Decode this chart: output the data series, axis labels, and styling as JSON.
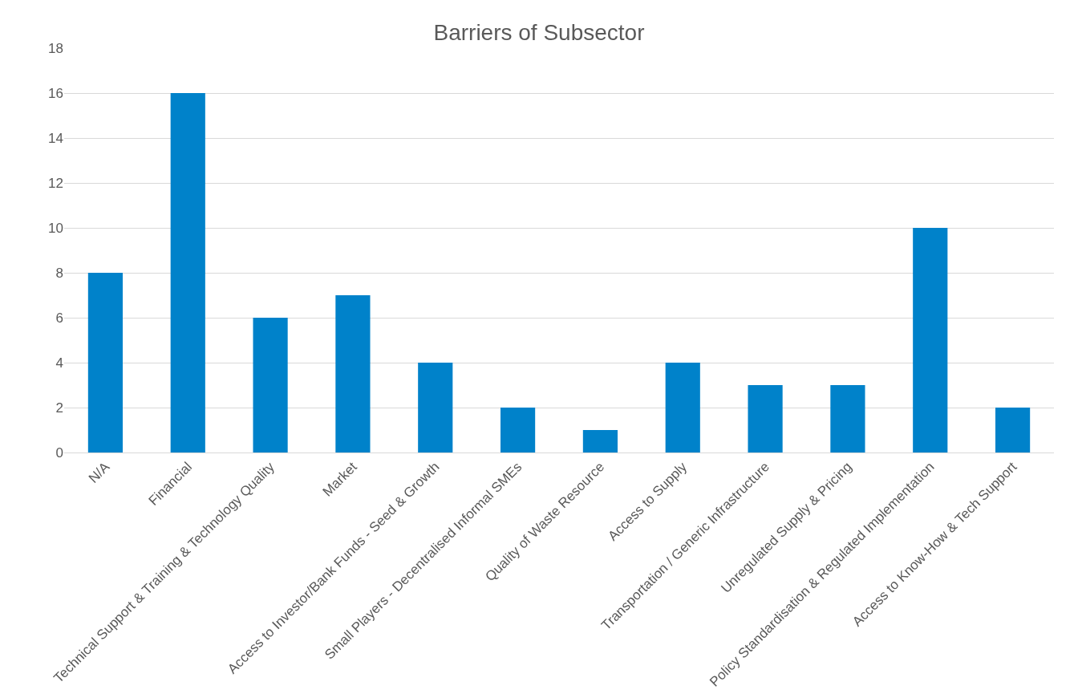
{
  "chart_data": {
    "type": "bar",
    "title": "Barriers of Subsector",
    "categories": [
      "N/A",
      "Financial",
      "Technical Support & Training & Technology Quality",
      "Market",
      "Access to Investor/Bank Funds - Seed & Growth",
      "Small Players - Decentralised Informal SMEs",
      "Quality of Waste Resource",
      "Access to Supply",
      "Transportation / Generic Infrastructure",
      "Unregulated Supply & Pricing",
      "Policy Standardisation & Regulated Implementation",
      "Access to Know-How & Tech Support"
    ],
    "values": [
      8,
      16,
      6,
      7,
      4,
      2,
      1,
      4,
      3,
      3,
      10,
      2
    ],
    "color": "#0082ca",
    "ylim": [
      0,
      18
    ],
    "yticks": [
      0,
      2,
      4,
      6,
      8,
      10,
      12,
      14,
      16,
      18
    ],
    "grid": "y"
  }
}
